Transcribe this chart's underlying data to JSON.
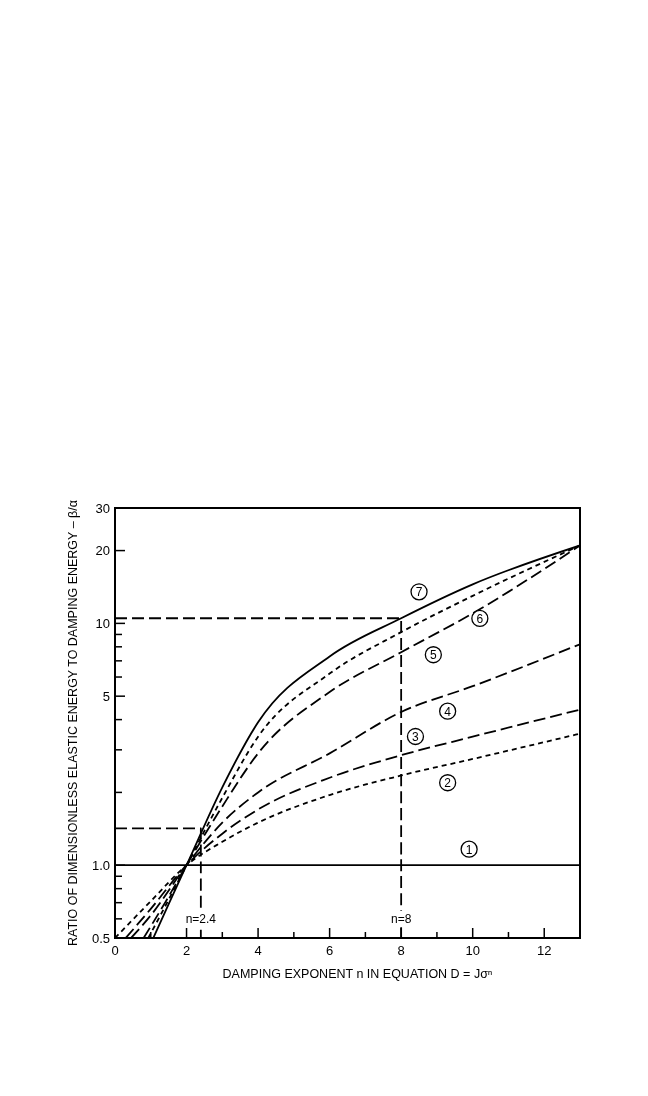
{
  "chart_data": {
    "type": "line",
    "xlabel": "DAMPING EXPONENT  n  IN EQUATION  D = Jσⁿ",
    "ylabel": "RATIO OF DIMENSIONLESS ELASTIC ENERGY TO DAMPING ENERGY – β/α",
    "log": "y",
    "grid": false,
    "legend": false,
    "xlim": [
      0,
      13
    ],
    "ylim": [
      0.5,
      30
    ],
    "xticks": [
      0,
      {
        "value": 1,
        "label": null
      },
      2,
      {
        "value": 3,
        "label": null
      },
      4,
      {
        "value": 5,
        "label": null
      },
      6,
      {
        "value": 7,
        "label": null
      },
      8,
      {
        "value": 9,
        "label": null
      },
      10,
      {
        "value": 11,
        "label": null
      },
      12
    ],
    "yticks": [
      0.5,
      {
        "value": 0.6,
        "label": null
      },
      {
        "value": 0.7,
        "label": null
      },
      {
        "value": 0.8,
        "label": null
      },
      {
        "value": 0.9,
        "label": null
      },
      {
        "value": 1,
        "label": "1.0"
      },
      {
        "value": 2,
        "label": null
      },
      {
        "value": 3,
        "label": null
      },
      {
        "value": 4,
        "label": null
      },
      5,
      {
        "value": 6,
        "label": null
      },
      {
        "value": 7,
        "label": null
      },
      {
        "value": 8,
        "label": null
      },
      {
        "value": 9,
        "label": null
      },
      10,
      20,
      30
    ],
    "series": [
      {
        "name": "1",
        "color": "#000000",
        "line_style": "solid",
        "x": [
          0,
          13
        ],
        "values": [
          1,
          1
        ]
      },
      {
        "name": "2",
        "color": "#000000",
        "line_style": "dotted",
        "x": [
          0,
          1,
          2,
          3,
          4,
          6,
          8,
          10,
          13
        ],
        "values": [
          0.5,
          0.71,
          1,
          1.25,
          1.5,
          1.95,
          2.35,
          2.75,
          3.5
        ]
      },
      {
        "name": "3",
        "color": "#000000",
        "line_style": "dashed",
        "x": [
          0.3,
          1,
          2,
          3,
          4,
          6,
          8,
          10,
          13
        ],
        "values": [
          0.5,
          0.66,
          1,
          1.35,
          1.7,
          2.3,
          2.85,
          3.4,
          4.4
        ]
      },
      {
        "name": "4",
        "color": "#000000",
        "line_style": "dashed",
        "x": [
          0.45,
          1,
          2,
          3,
          4,
          6,
          8,
          10,
          13
        ],
        "values": [
          0.5,
          0.62,
          1,
          1.5,
          2,
          2.9,
          4.3,
          5.5,
          8.2
        ]
      },
      {
        "name": "5",
        "color": "#000000",
        "line_style": "dashed",
        "x": [
          0.8,
          1.4,
          2,
          3,
          4,
          6,
          8,
          10,
          13
        ],
        "values": [
          0.5,
          0.7,
          1,
          1.75,
          2.9,
          5.2,
          7.6,
          11,
          21
        ]
      },
      {
        "name": "6",
        "color": "#000000",
        "line_style": "dotted",
        "x": [
          0.93,
          1.5,
          2,
          3,
          4,
          6,
          8,
          10,
          13
        ],
        "values": [
          0.5,
          0.72,
          1,
          1.9,
          3.4,
          6.2,
          9.2,
          13,
          21
        ]
      },
      {
        "name": "7",
        "color": "#000000",
        "line_style": "solid",
        "x": [
          1.07,
          1.5,
          2,
          3,
          4,
          6,
          8,
          10,
          13
        ],
        "values": [
          0.5,
          0.69,
          1,
          2.1,
          3.9,
          7.3,
          10.5,
          14.5,
          21
        ]
      },
      {
        "color": "#000000",
        "line_style": "dashed",
        "x": [
          0,
          2.4,
          2.4
        ],
        "values": [
          1.42,
          1.42,
          0.5
        ]
      },
      {
        "color": "#000000",
        "line_style": "dashed",
        "x": [
          0,
          8,
          8
        ],
        "values": [
          10.5,
          10.5,
          0.5
        ]
      }
    ],
    "annotations": [
      {
        "text": "n=2.4",
        "x": 2.4,
        "y": 0.6
      },
      {
        "text": "n=8",
        "x": 8,
        "y": 0.6
      }
    ]
  }
}
